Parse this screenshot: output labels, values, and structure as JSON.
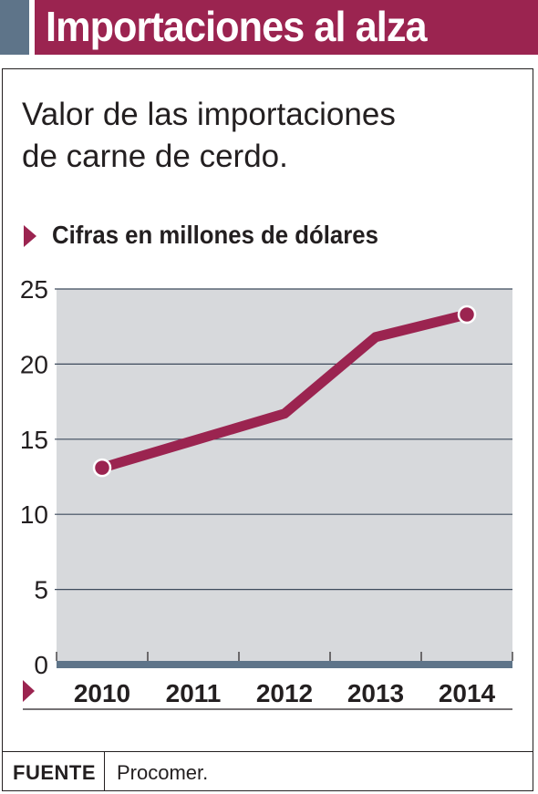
{
  "header": {
    "title": "Importaciones al alza",
    "accent_color": "#5e7489",
    "brand_color": "#9b2450"
  },
  "subtitle": {
    "line1": "Valor de las importaciones",
    "line2": "de carne de cerdo."
  },
  "unit_label": "Cifras en millones de dólares",
  "footer": {
    "label": "FUENTE",
    "source": "Procomer."
  },
  "chart_data": {
    "type": "line",
    "title": "",
    "xlabel": "",
    "ylabel": "",
    "x": [
      "2010",
      "2011",
      "2012",
      "2013",
      "2014"
    ],
    "series": [
      {
        "values": [
          13.1,
          14.9,
          16.7,
          21.8,
          23.3
        ],
        "color": "#9b2450"
      }
    ],
    "ylim": [
      0,
      25
    ],
    "yticks": [
      0,
      5,
      10,
      15,
      20,
      25
    ],
    "grid": true,
    "plot_background": "#d7d9dc",
    "markers": "first-and-last",
    "marker_indices": [
      0,
      4
    ]
  }
}
